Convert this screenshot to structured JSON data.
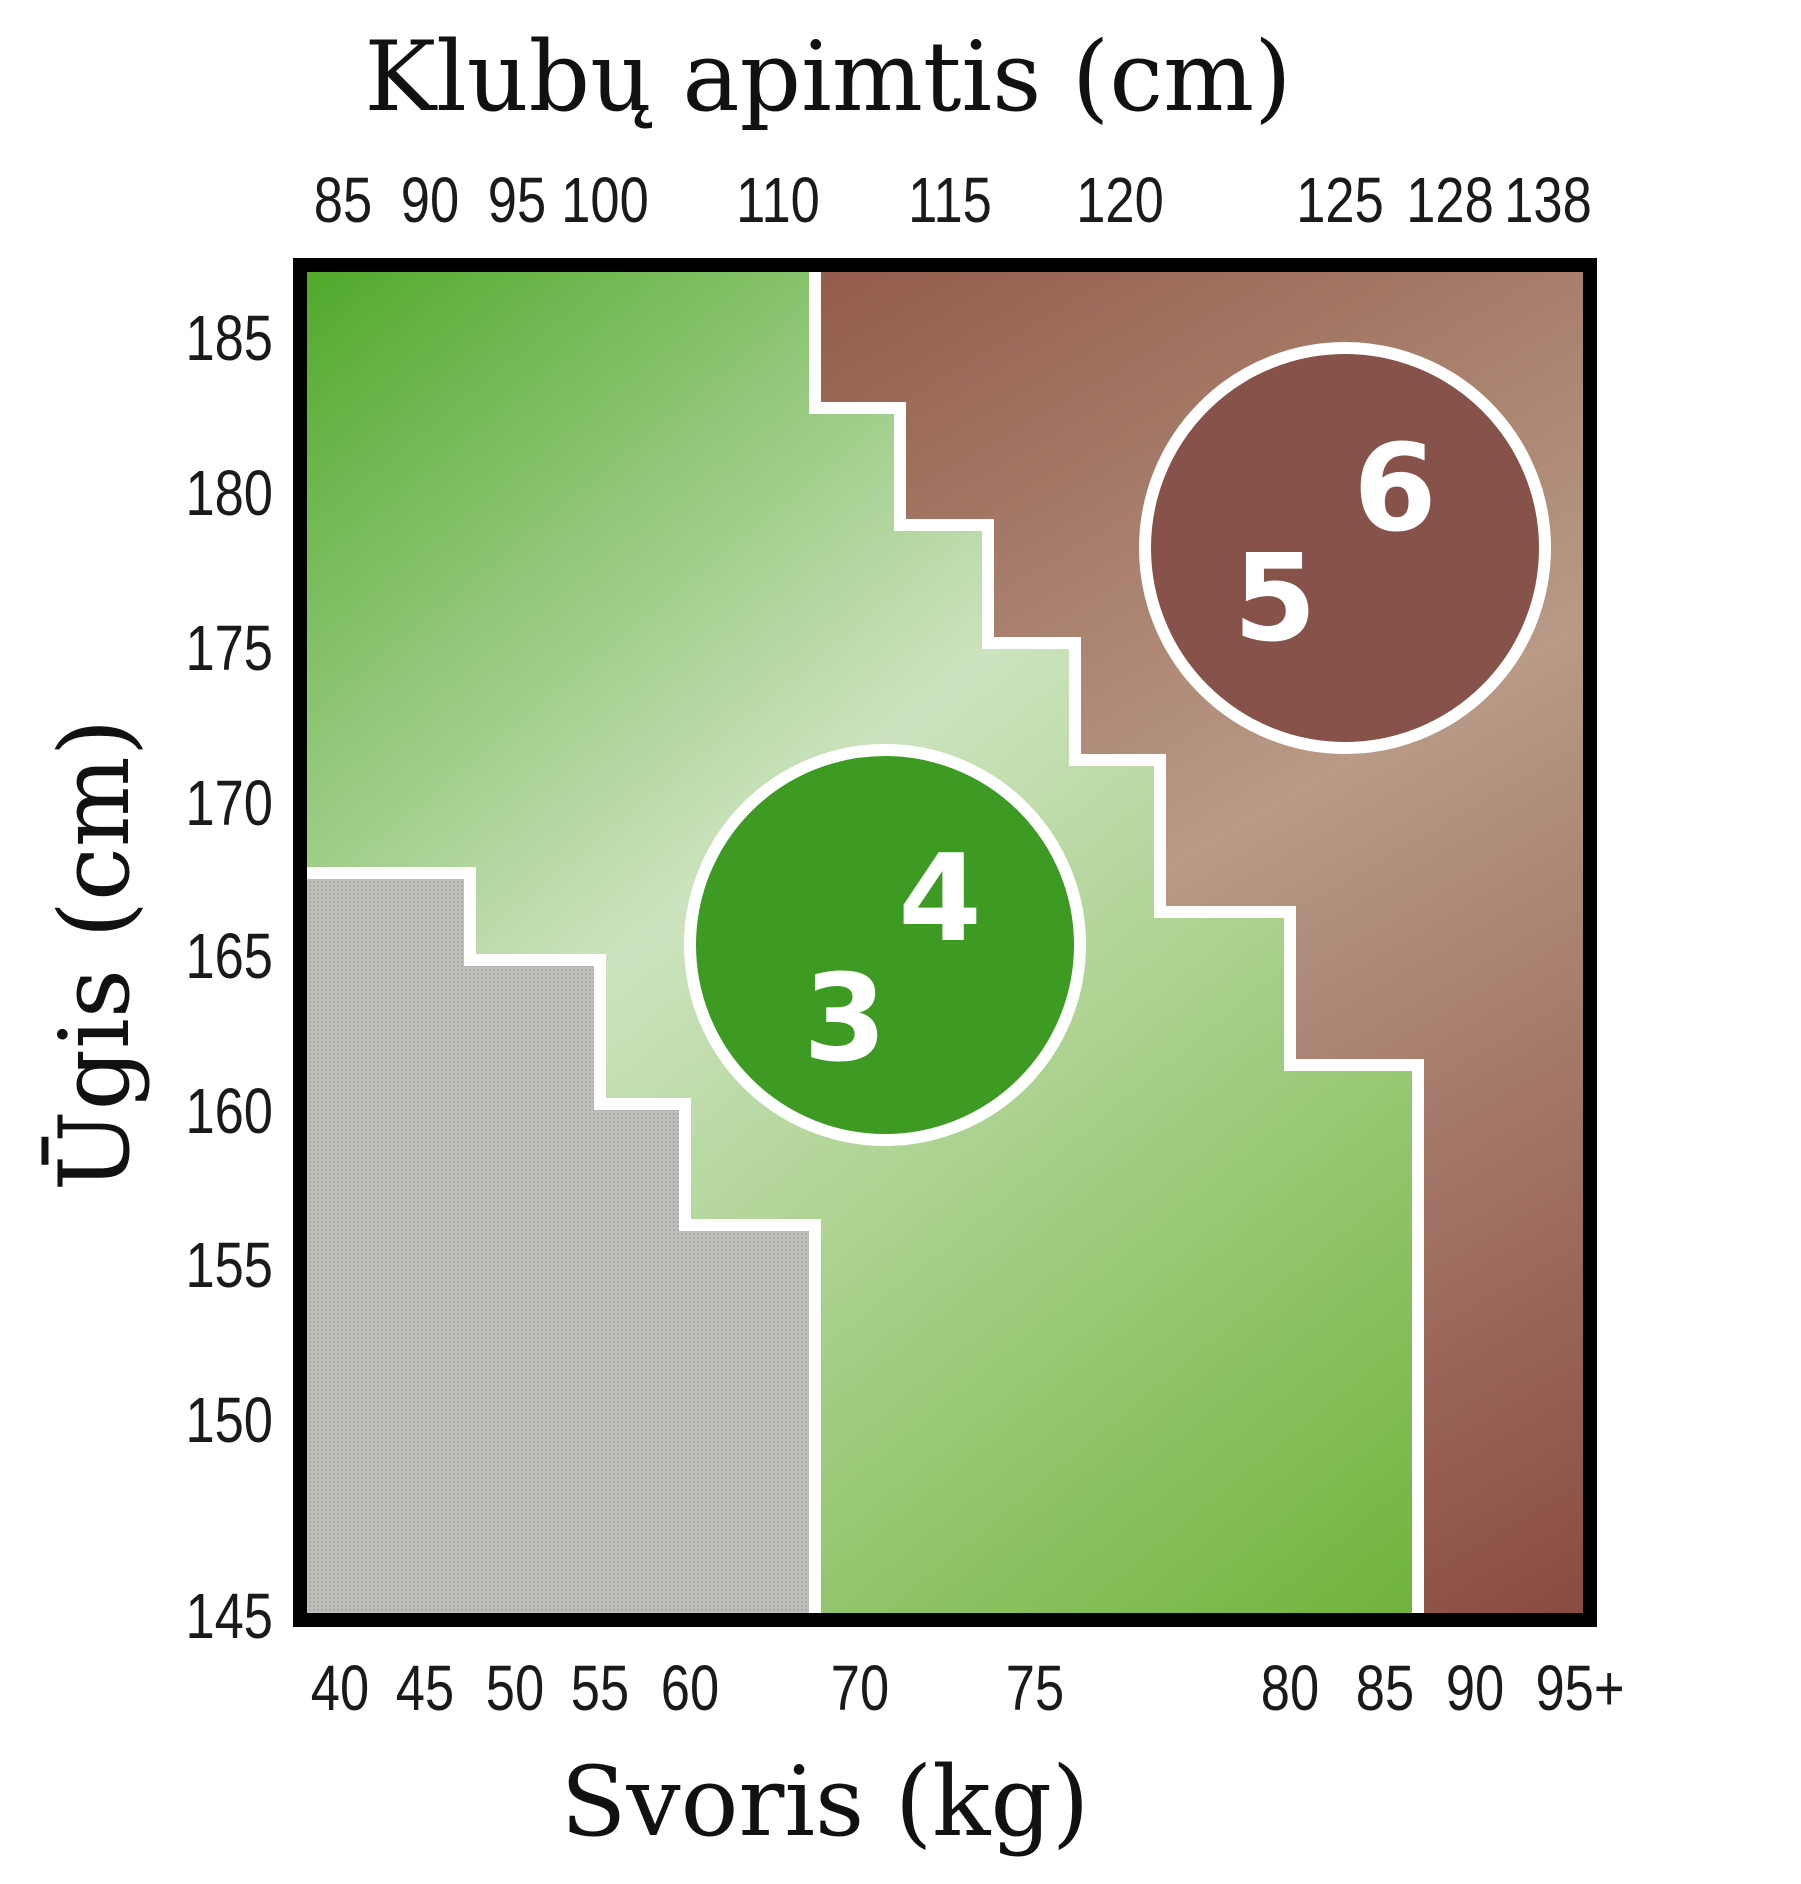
{
  "chart_data": {
    "type": "heatmap",
    "top_axis": {
      "title": "Klubų apimtis (cm)",
      "ticks": [
        "85",
        "90",
        "95",
        "100",
        "110",
        "115",
        "120",
        "125",
        "128",
        "138"
      ]
    },
    "left_axis": {
      "title": "Ūgis (cm)",
      "ticks": [
        "185",
        "180",
        "175",
        "170",
        "165",
        "160",
        "155",
        "150",
        "145"
      ]
    },
    "bottom_axis": {
      "title": "Svoris (kg)",
      "ticks": [
        "40",
        "45",
        "50",
        "55",
        "60",
        "70",
        "75",
        "80",
        "85",
        "90",
        "95+"
      ]
    },
    "zones": [
      {
        "name": "grey",
        "color": "#b9b7b3"
      },
      {
        "name": "green",
        "color": "#5fa83a",
        "labels": [
          "3",
          "4"
        ],
        "badge_color": "#3d9a22"
      },
      {
        "name": "brown",
        "color": "#8f5e50",
        "labels": [
          "5",
          "6"
        ],
        "badge_color": "#86524a"
      }
    ]
  }
}
